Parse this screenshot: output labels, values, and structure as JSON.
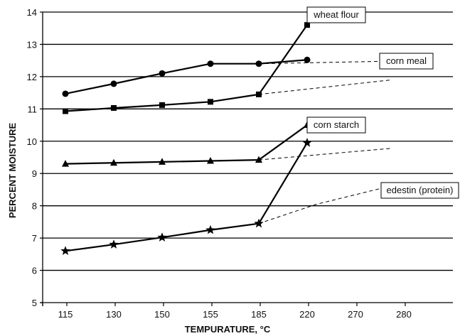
{
  "chart_data": {
    "type": "line",
    "title": "",
    "xlabel": "TEMPURATURE, °C",
    "ylabel": "PERCENT MOISTURE",
    "x_tick_labels": [
      "115",
      "130",
      "150",
      "155",
      "185",
      "220",
      "270",
      "280"
    ],
    "ylim": [
      5,
      14
    ],
    "y_ticks": [
      5,
      6,
      7,
      8,
      9,
      10,
      11,
      12,
      13,
      14
    ],
    "grid": "horizontal",
    "series": [
      {
        "name": "wheat flour",
        "marker": "square",
        "values": [
          10.93,
          11.03,
          11.12,
          11.22,
          11.45,
          13.6
        ],
        "x_index": [
          0,
          1,
          2,
          3,
          4,
          5
        ],
        "dashed_extrapolation": {
          "from_index": 4,
          "to_x_index": 6.75,
          "to_value": 11.9
        }
      },
      {
        "name": "corn meal",
        "marker": "circle",
        "values": [
          11.47,
          11.78,
          12.1,
          12.4,
          12.4,
          12.52
        ],
        "x_index": [
          0,
          1,
          2,
          3,
          4,
          5
        ],
        "dashed_extrapolation": {
          "from_index": 4,
          "to_x_index": 6.75,
          "to_value": 12.48
        }
      },
      {
        "name": "corn starch",
        "marker": "triangle",
        "values": [
          9.3,
          9.33,
          9.36,
          9.39,
          9.42,
          10.5
        ],
        "x_index": [
          0,
          1,
          2,
          3,
          4,
          5
        ],
        "dashed_extrapolation": {
          "from_index": 4,
          "to_x_index": 6.75,
          "to_value": 9.78
        }
      },
      {
        "name": "edestin (protein)",
        "marker": "star",
        "values": [
          6.6,
          6.8,
          7.02,
          7.25,
          7.45,
          9.95
        ],
        "x_index": [
          0,
          1,
          2,
          3,
          4,
          5
        ],
        "dashed_extrapolation": {
          "from_index": 4,
          "via_x_index": 5.2,
          "via_value": 8.05,
          "to_x_index": 6.75,
          "to_value": 8.62
        }
      }
    ],
    "legend": "labels next to series (top-right boxes)"
  },
  "colors": {
    "line": "#000000",
    "grid": "#000000",
    "background": "#ffffff"
  }
}
